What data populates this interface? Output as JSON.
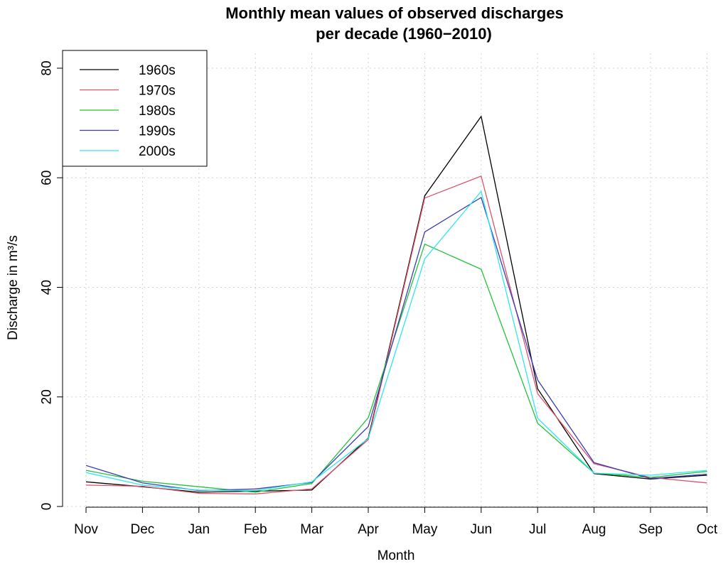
{
  "chart_data": {
    "type": "line",
    "title": [
      "Monthly mean values of observed discharges",
      "per decade (1960−2010)"
    ],
    "xlabel": "Month",
    "ylabel": "Discharge in m³/s",
    "categories": [
      "Nov",
      "Dec",
      "Jan",
      "Feb",
      "Mar",
      "Apr",
      "May",
      "Jun",
      "Jul",
      "Aug",
      "Sep",
      "Oct"
    ],
    "ylim": [
      0,
      80
    ],
    "yticks": [
      "0",
      "20",
      "40",
      "60",
      "80"
    ],
    "grid": true,
    "legend_position": "top-left",
    "series": [
      {
        "name": "1960s",
        "color": "#000000",
        "values": [
          4.5,
          3.6,
          2.6,
          2.8,
          3.0,
          12.5,
          56.7,
          71.2,
          21.5,
          6.0,
          5.0,
          5.7
        ]
      },
      {
        "name": "1970s",
        "color": "#df536b",
        "values": [
          3.9,
          3.7,
          2.4,
          2.3,
          3.2,
          12.2,
          56.3,
          60.3,
          20.6,
          7.8,
          5.3,
          4.3
        ]
      },
      {
        "name": "1980s",
        "color": "#22c33a",
        "values": [
          6.6,
          4.6,
          3.6,
          2.6,
          4.2,
          16.2,
          47.9,
          43.3,
          15.2,
          6.1,
          5.3,
          6.4
        ]
      },
      {
        "name": "1990s",
        "color": "#3c3cb4",
        "values": [
          7.5,
          4.3,
          2.9,
          3.2,
          4.4,
          14.6,
          50.1,
          56.4,
          23.1,
          8.0,
          5.1,
          5.9
        ]
      },
      {
        "name": "2000s",
        "color": "#2ee7ee",
        "values": [
          6.2,
          3.9,
          3.0,
          2.9,
          4.5,
          12.4,
          45.2,
          57.5,
          16.1,
          6.1,
          5.7,
          6.6
        ]
      }
    ]
  }
}
